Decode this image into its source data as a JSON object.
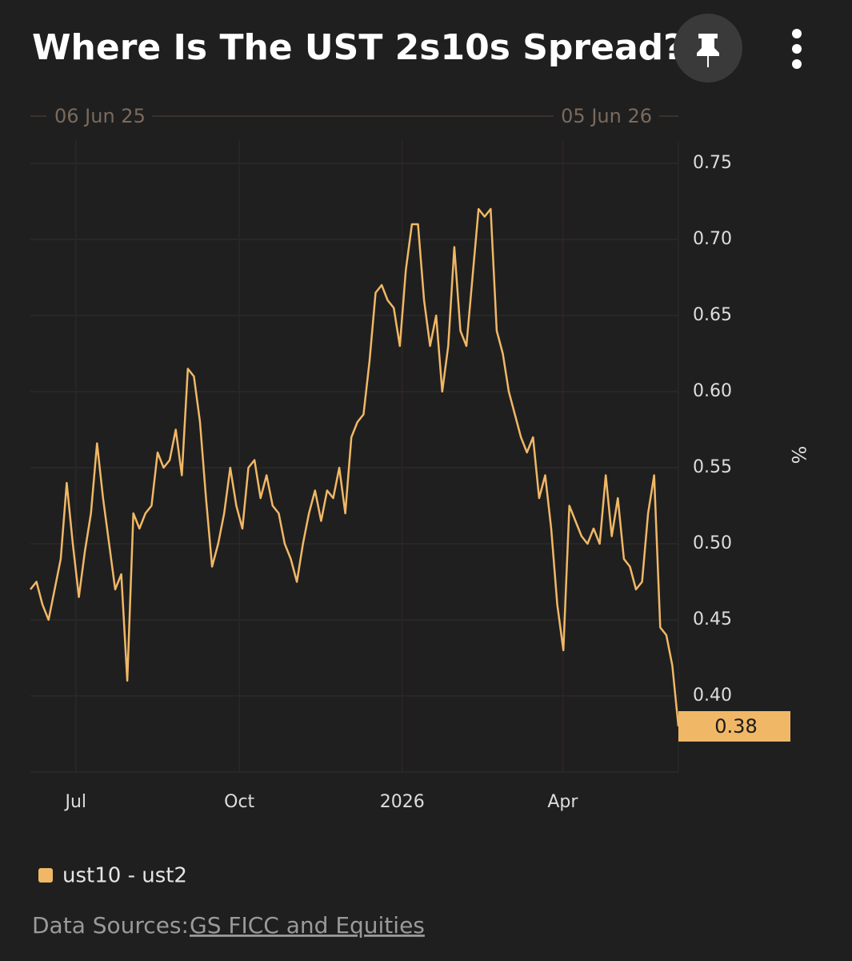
{
  "chart_data": {
    "type": "line",
    "title": "Where Is The UST 2s10s Spread?",
    "range_start": "06 Jun 25",
    "range_end": "05 Jun 26",
    "y_label": "%",
    "series": [
      {
        "name": "ust10 - ust2",
        "color": "#f0b866",
        "values": [
          0.47,
          0.475,
          0.46,
          0.45,
          0.47,
          0.49,
          0.54,
          0.5,
          0.465,
          0.495,
          0.52,
          0.566,
          0.53,
          0.5,
          0.47,
          0.48,
          0.41,
          0.52,
          0.51,
          0.52,
          0.525,
          0.56,
          0.55,
          0.555,
          0.575,
          0.545,
          0.615,
          0.61,
          0.58,
          0.53,
          0.485,
          0.5,
          0.52,
          0.55,
          0.525,
          0.51,
          0.55,
          0.555,
          0.53,
          0.545,
          0.525,
          0.52,
          0.5,
          0.49,
          0.475,
          0.5,
          0.52,
          0.535,
          0.515,
          0.535,
          0.53,
          0.55,
          0.52,
          0.57,
          0.58,
          0.585,
          0.62,
          0.665,
          0.67,
          0.66,
          0.655,
          0.63,
          0.68,
          0.71,
          0.71,
          0.66,
          0.63,
          0.65,
          0.6,
          0.63,
          0.695,
          0.64,
          0.63,
          0.675,
          0.72,
          0.715,
          0.72,
          0.64,
          0.625,
          0.6,
          0.585,
          0.57,
          0.56,
          0.57,
          0.53,
          0.545,
          0.51,
          0.46,
          0.43,
          0.525,
          0.515,
          0.505,
          0.5,
          0.51,
          0.5,
          0.545,
          0.505,
          0.53,
          0.49,
          0.485,
          0.47,
          0.475,
          0.52,
          0.545,
          0.445,
          0.44,
          0.42,
          0.38
        ]
      }
    ],
    "xlim": [
      0,
      107
    ],
    "xticks": [
      {
        "value": 7.5,
        "label": "Jul"
      },
      {
        "value": 34.5,
        "label": "Oct"
      },
      {
        "value": 61.4,
        "label": "2026"
      },
      {
        "value": 87.9,
        "label": "Apr"
      }
    ],
    "ylim": [
      0.35,
      0.75
    ],
    "yticks": [
      {
        "value": 0.4,
        "label": "0.40"
      },
      0.45,
      {
        "value": 0.5,
        "label": "0.50"
      },
      0.55,
      {
        "value": 0.6,
        "label": "0.60"
      },
      0.65,
      {
        "value": 0.7,
        "label": "0.70"
      },
      0.75
    ],
    "grid": true
  },
  "footer": {
    "label": "Data Sources:",
    "link": "GS FICC and Equities"
  }
}
